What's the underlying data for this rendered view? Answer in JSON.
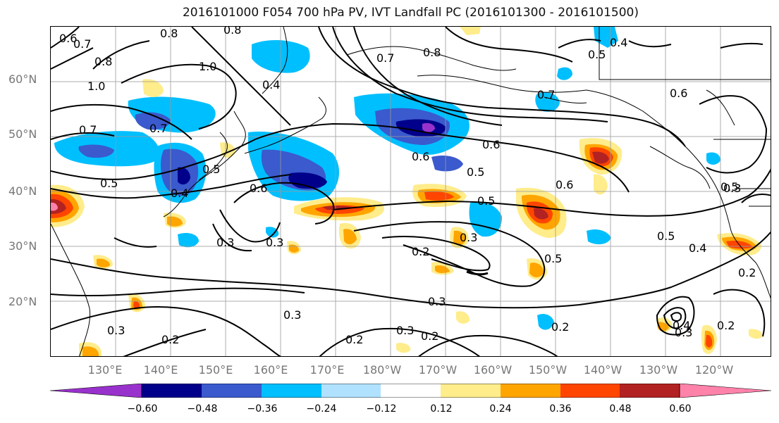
{
  "title": "2016101000 F054 700 hPa PV, IVT Landfall PC (2016101300 - 2016101500)",
  "lat_labels": [
    "60°N",
    "50°N",
    "40°N",
    "30°N",
    "20°N"
  ],
  "lon_labels": [
    "130°E",
    "140°E",
    "150°E",
    "160°E",
    "170°E",
    "180°W",
    "170°W",
    "160°W",
    "150°W",
    "140°W",
    "130°W",
    "120°W"
  ],
  "colorbar": {
    "colors": [
      "#9932cc",
      "#00008b",
      "#3a5acd",
      "#00bfff",
      "#b0e2ff",
      "#ffffff",
      "#ffec8b",
      "#ffa500",
      "#ff4500",
      "#b22222",
      "#ff82ab"
    ],
    "tick_labels": [
      "−0.60",
      "−0.48",
      "−0.36",
      "−0.24",
      "−0.12",
      "0.12",
      "0.24",
      "0.36",
      "0.48",
      "0.60"
    ]
  },
  "contour_labels": [
    "0.6",
    "0.7",
    "0.8",
    "1.0",
    "0.8",
    "0.5",
    "0.4",
    "0.7",
    "1.0",
    "0.8",
    "0.4",
    "0.5",
    "0.7",
    "0.6",
    "0.7",
    "0.8",
    "0.6",
    "0.7",
    "0.6",
    "0.5",
    "0.4",
    "0.5",
    "0.6",
    "0.6",
    "0.5",
    "0.5",
    "0.3",
    "0.2",
    "0.3",
    "0.3",
    "0.5",
    "0.5",
    "0.4",
    "0.3",
    "0.2",
    "0.3",
    "0.2",
    "0.3",
    "0.3",
    "0.2",
    "0.2",
    "0.4",
    "0.3",
    "0.2",
    "0.2",
    "0.3"
  ]
}
